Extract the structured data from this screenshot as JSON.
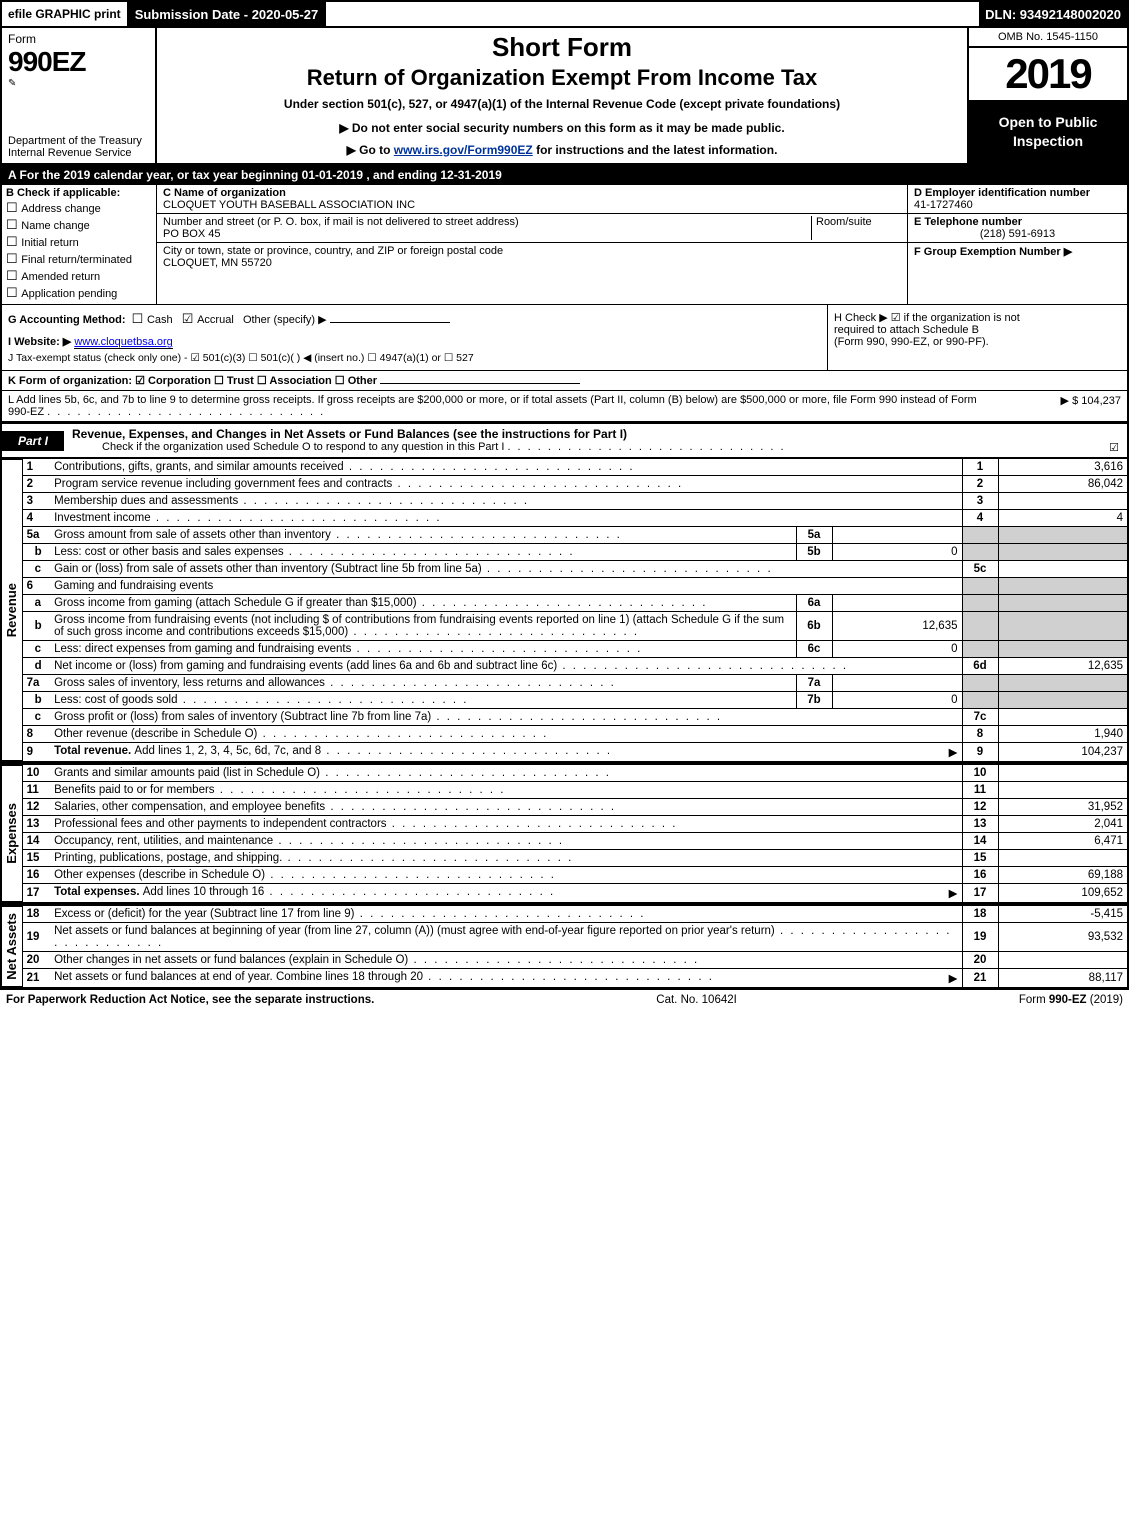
{
  "topbar": {
    "efile": "efile GRAPHIC print",
    "submission": "Submission Date - 2020-05-27",
    "dln": "DLN: 93492148002020"
  },
  "header": {
    "form_word": "Form",
    "form_no": "990EZ",
    "dept": "Department of the Treasury",
    "irs": "Internal Revenue Service",
    "short_form": "Short Form",
    "return_title": "Return of Organization Exempt From Income Tax",
    "under_section": "Under section 501(c), 527, or 4947(a)(1) of the Internal Revenue Code (except private foundations)",
    "notice": "▶ Do not enter social security numbers on this form as it may be made public.",
    "goto_prefix": "▶ Go to ",
    "goto_link": "www.irs.gov/Form990EZ",
    "goto_suffix": " for instructions and the latest information.",
    "omb": "OMB No. 1545-1150",
    "year": "2019",
    "open": "Open to Public Inspection"
  },
  "cal_year": "A For the 2019 calendar year, or tax year beginning 01-01-2019 , and ending 12-31-2019",
  "section_b": {
    "head": "B Check if applicable:",
    "items": [
      "Address change",
      "Name change",
      "Initial return",
      "Final return/terminated",
      "Amended return",
      "Application pending"
    ]
  },
  "section_c": {
    "c_label": "C Name of organization",
    "name": "CLOQUET YOUTH BASEBALL ASSOCIATION INC",
    "street_label": "Number and street (or P. O. box, if mail is not delivered to street address)",
    "room_label": "Room/suite",
    "street": "PO BOX 45",
    "city_label": "City or town, state or province, country, and ZIP or foreign postal code",
    "city": "CLOQUET, MN  55720"
  },
  "section_right": {
    "d_label": "D Employer identification number",
    "d_val": "41-1727460",
    "e_label": "E Telephone number",
    "e_val": "(218) 591-6913",
    "f_label": "F Group Exemption Number  ▶"
  },
  "g": {
    "label": "G Accounting Method:",
    "cash": "Cash",
    "accrual": "Accrual",
    "other": "Other (specify) ▶"
  },
  "h": {
    "text1": "H  Check ▶ ☑ if the organization is not",
    "text2": "required to attach Schedule B",
    "text3": "(Form 990, 990-EZ, or 990-PF)."
  },
  "i": {
    "label": "I Website: ▶",
    "val": "www.cloquetbsa.org"
  },
  "j": {
    "label": "J Tax-exempt status (check only one) - ☑ 501(c)(3) ☐ 501(c)( ) ◀ (insert no.) ☐ 4947(a)(1) or ☐ 527"
  },
  "k": {
    "label": "K Form of organization:  ☑ Corporation  ☐ Trust  ☐ Association  ☐ Other"
  },
  "l": {
    "text": "L Add lines 5b, 6c, and 7b to line 9 to determine gross receipts. If gross receipts are $200,000 or more, or if total assets (Part II, column (B) below) are $500,000 or more, file Form 990 instead of Form 990-EZ",
    "amount": "▶ $ 104,237"
  },
  "part1": {
    "tab": "Part I",
    "title": "Revenue, Expenses, and Changes in Net Assets or Fund Balances (see the instructions for Part I)",
    "sub": "Check if the organization used Schedule O to respond to any question in this Part I",
    "check": "☑"
  },
  "revenue": [
    {
      "n": "1",
      "d": "Contributions, gifts, grants, and similar amounts received",
      "rn": "1",
      "rv": "3,616"
    },
    {
      "n": "2",
      "d": "Program service revenue including government fees and contracts",
      "rn": "2",
      "rv": "86,042"
    },
    {
      "n": "3",
      "d": "Membership dues and assessments",
      "rn": "3",
      "rv": ""
    },
    {
      "n": "4",
      "d": "Investment income",
      "rn": "4",
      "rv": "4"
    },
    {
      "n": "5a",
      "d": "Gross amount from sale of assets other than inventory",
      "in": "5a",
      "iv": ""
    },
    {
      "n": "b",
      "d": "Less: cost or other basis and sales expenses",
      "in": "5b",
      "iv": "0"
    },
    {
      "n": "c",
      "d": "Gain or (loss) from sale of assets other than inventory (Subtract line 5b from line 5a)",
      "rn": "5c",
      "rv": ""
    },
    {
      "n": "6",
      "d": "Gaming and fundraising events"
    },
    {
      "n": "a",
      "d": "Gross income from gaming (attach Schedule G if greater than $15,000)",
      "in": "6a",
      "iv": ""
    },
    {
      "n": "b",
      "d": "Gross income from fundraising events (not including $                    of contributions from fundraising events reported on line 1) (attach Schedule G if the sum of such gross income and contributions exceeds $15,000)",
      "in": "6b",
      "iv": "12,635"
    },
    {
      "n": "c",
      "d": "Less: direct expenses from gaming and fundraising events",
      "in": "6c",
      "iv": "0"
    },
    {
      "n": "d",
      "d": "Net income or (loss) from gaming and fundraising events (add lines 6a and 6b and subtract line 6c)",
      "rn": "6d",
      "rv": "12,635"
    },
    {
      "n": "7a",
      "d": "Gross sales of inventory, less returns and allowances",
      "in": "7a",
      "iv": ""
    },
    {
      "n": "b",
      "d": "Less: cost of goods sold",
      "in": "7b",
      "iv": "0"
    },
    {
      "n": "c",
      "d": "Gross profit or (loss) from sales of inventory (Subtract line 7b from line 7a)",
      "rn": "7c",
      "rv": ""
    },
    {
      "n": "8",
      "d": "Other revenue (describe in Schedule O)",
      "rn": "8",
      "rv": "1,940"
    },
    {
      "n": "9",
      "d": "Total revenue. Add lines 1, 2, 3, 4, 5c, 6d, 7c, and 8",
      "rn": "9",
      "rv": "104,237",
      "bold": true,
      "arrow": true
    }
  ],
  "revenue_label": "Revenue",
  "expenses": [
    {
      "n": "10",
      "d": "Grants and similar amounts paid (list in Schedule O)",
      "rn": "10",
      "rv": ""
    },
    {
      "n": "11",
      "d": "Benefits paid to or for members",
      "rn": "11",
      "rv": ""
    },
    {
      "n": "12",
      "d": "Salaries, other compensation, and employee benefits",
      "rn": "12",
      "rv": "31,952"
    },
    {
      "n": "13",
      "d": "Professional fees and other payments to independent contractors",
      "rn": "13",
      "rv": "2,041"
    },
    {
      "n": "14",
      "d": "Occupancy, rent, utilities, and maintenance",
      "rn": "14",
      "rv": "6,471"
    },
    {
      "n": "15",
      "d": "Printing, publications, postage, and shipping.",
      "rn": "15",
      "rv": ""
    },
    {
      "n": "16",
      "d": "Other expenses (describe in Schedule O)",
      "rn": "16",
      "rv": "69,188"
    },
    {
      "n": "17",
      "d": "Total expenses. Add lines 10 through 16",
      "rn": "17",
      "rv": "109,652",
      "bold": true,
      "arrow": true
    }
  ],
  "expenses_label": "Expenses",
  "netassets": [
    {
      "n": "18",
      "d": "Excess or (deficit) for the year (Subtract line 17 from line 9)",
      "rn": "18",
      "rv": "-5,415"
    },
    {
      "n": "19",
      "d": "Net assets or fund balances at beginning of year (from line 27, column (A)) (must agree with end-of-year figure reported on prior year's return)",
      "rn": "19",
      "rv": "93,532"
    },
    {
      "n": "20",
      "d": "Other changes in net assets or fund balances (explain in Schedule O)",
      "rn": "20",
      "rv": ""
    },
    {
      "n": "21",
      "d": "Net assets or fund balances at end of year. Combine lines 18 through 20",
      "rn": "21",
      "rv": "88,117",
      "arrow": true
    }
  ],
  "netassets_label": "Net Assets",
  "footer": {
    "left": "For Paperwork Reduction Act Notice, see the separate instructions.",
    "center": "Cat. No. 10642I",
    "right": "Form 990-EZ (2019)"
  }
}
